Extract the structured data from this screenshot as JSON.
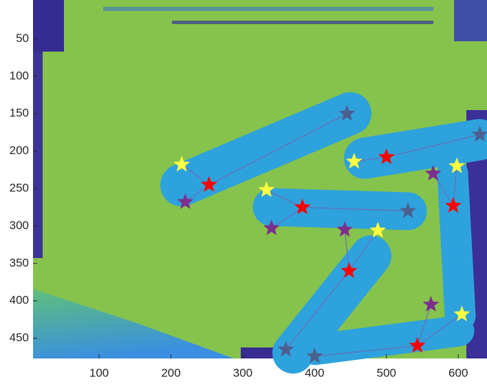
{
  "chart_data": {
    "type": "scatter",
    "xlim": [
      8,
      640
    ],
    "ylim": [
      0,
      477
    ],
    "y_reversed": true,
    "xticks": [
      100,
      200,
      300,
      400,
      500,
      600
    ],
    "yticks": [
      50,
      100,
      150,
      200,
      250,
      300,
      350,
      400,
      450
    ],
    "marker": "star",
    "link_color": "#6a6ab8",
    "series": [
      {
        "color": "#4b5f8f",
        "x": [
          445,
          530,
          630,
          null,
          360,
          400
        ],
        "y": [
          150,
          280,
          178,
          null,
          465,
          474
        ]
      },
      {
        "color": "#7e2f8e",
        "x": [
          220,
          340,
          null,
          565,
          442,
          562
        ],
        "y": [
          268,
          303,
          null,
          230,
          305,
          405
        ]
      },
      {
        "color": "#ffff40",
        "x": [
          215,
          333,
          455,
          598,
          488,
          605
        ],
        "y": [
          218,
          252,
          214,
          220,
          306,
          418
        ]
      },
      {
        "color": "#ff0000",
        "x": [
          253,
          383,
          500,
          593,
          448,
          543
        ],
        "y": [
          245,
          275,
          208,
          273,
          360,
          460
        ]
      }
    ],
    "link_from": 3
  }
}
